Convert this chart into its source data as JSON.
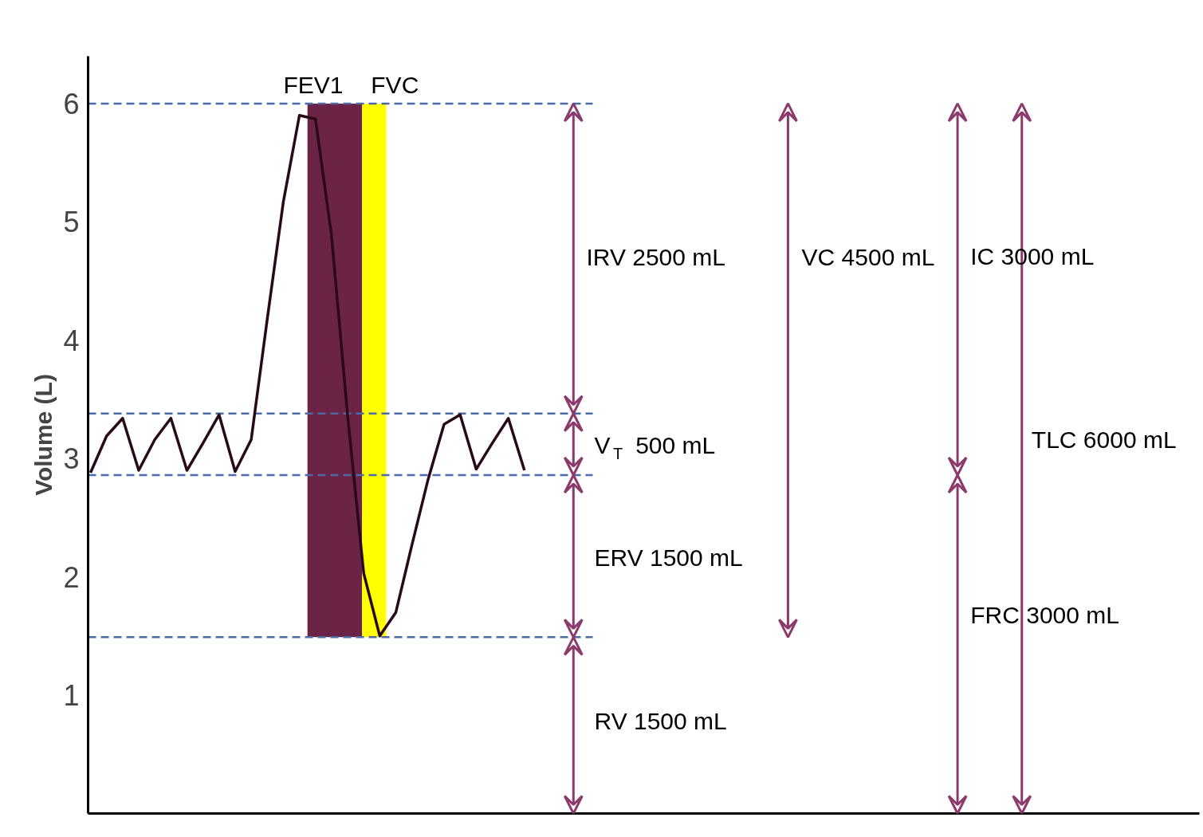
{
  "chart_data": {
    "type": "line",
    "ylabel": "Volume (L)",
    "ylim": [
      0,
      6.4
    ],
    "yticks": [
      1,
      2,
      3,
      4,
      5,
      6
    ],
    "tick_labels": "y",
    "grid": false,
    "categories": [
      null,
      null,
      null,
      null,
      null,
      null,
      null,
      null,
      null,
      null,
      null,
      null,
      null,
      null,
      null,
      null,
      null,
      null,
      null,
      null,
      null,
      null,
      null,
      null,
      null,
      null,
      null,
      null
    ],
    "series": [
      {
        "color": "#2a0a1a",
        "values": [
          2.88,
          3.19,
          3.34,
          2.9,
          3.16,
          3.34,
          2.9,
          3.13,
          3.37,
          2.89,
          3.16,
          4.18,
          5.17,
          5.9,
          5.87,
          4.88,
          3.36,
          2.03,
          1.5,
          1.7,
          2.27,
          2.82,
          3.29,
          3.37,
          2.91,
          3.13,
          3.34,
          2.9
        ]
      }
    ],
    "ref_lines": [
      {
        "axis": "y",
        "value": 6.0,
        "color": "#4a6aa8",
        "line_style": "dashed"
      },
      {
        "axis": "y",
        "value": 3.38,
        "color": "#4a6aa8",
        "line_style": "dashed"
      },
      {
        "axis": "y",
        "value": 2.86,
        "color": "#4a6aa8",
        "line_style": "dashed"
      },
      {
        "axis": "y",
        "value": 1.49,
        "color": "#4a6aa8",
        "line_style": "dashed"
      }
    ],
    "annotations": [
      "FEV1",
      "FVC",
      "IRV 2500 mL",
      "V$_{T}$ 500 mL",
      "ERV 1500 mL",
      "RV 1500 mL",
      "VC 4500 mL",
      "IC 3000 mL",
      "TLC 6000 mL",
      "FRC 3000 mL"
    ]
  }
}
